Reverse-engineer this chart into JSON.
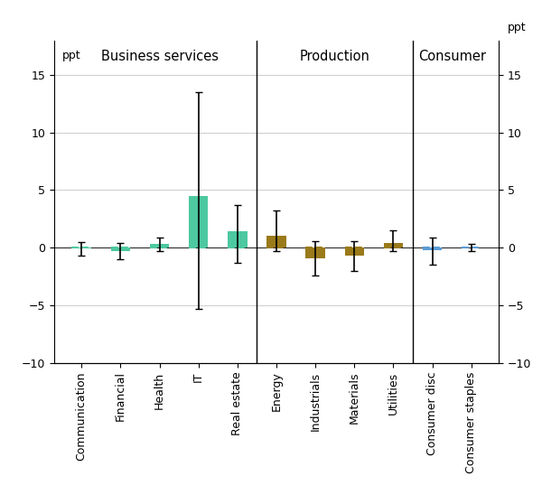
{
  "categories": [
    "Communication",
    "Financial",
    "Health",
    "IT",
    "Real estate",
    "Energy",
    "Industrials",
    "Materials",
    "Utilities",
    "Consumer disc",
    "Consumer staples"
  ],
  "bar_values": [
    -0.1,
    -0.3,
    0.3,
    4.5,
    1.4,
    1.0,
    -0.9,
    -0.7,
    0.4,
    -0.2,
    0.0
  ],
  "ci_lower": [
    -0.7,
    -1.0,
    -0.3,
    -5.3,
    -1.3,
    -0.3,
    -2.4,
    -2.0,
    -0.3,
    -1.5,
    -0.3
  ],
  "ci_upper": [
    0.5,
    0.4,
    0.9,
    13.5,
    3.7,
    3.2,
    0.6,
    0.6,
    1.5,
    0.9,
    0.3
  ],
  "bar_colors": [
    "#4dc8a0",
    "#4dc8a0",
    "#4dc8a0",
    "#4dc8a0",
    "#4dc8a0",
    "#9a7a1a",
    "#9a7a1a",
    "#9a7a1a",
    "#9a7a1a",
    "#5b9bd5",
    "#5b9bd5"
  ],
  "dash_colors": [
    "#4dc8a0",
    "#4dc8a0",
    "#4dc8a0",
    "#4dc8a0",
    "#4dc8a0",
    "#9a7a1a",
    "#9a7a1a",
    "#9a7a1a",
    "#9a7a1a",
    "#5b9bd5",
    "#5b9bd5"
  ],
  "group_labels": [
    "Business services",
    "Production",
    "Consumer"
  ],
  "group_dividers": [
    4.5,
    8.5
  ],
  "group_centers": [
    2.0,
    6.5,
    9.5
  ],
  "ylim": [
    -10,
    18
  ],
  "yticks": [
    -10,
    -5,
    0,
    5,
    10,
    15
  ],
  "ylabel": "ppt",
  "background_color": "#ffffff",
  "grid_color": "#d0d0d0",
  "bar_width": 0.5,
  "errorbar_capsize": 3,
  "errorbar_linewidth": 1.2
}
